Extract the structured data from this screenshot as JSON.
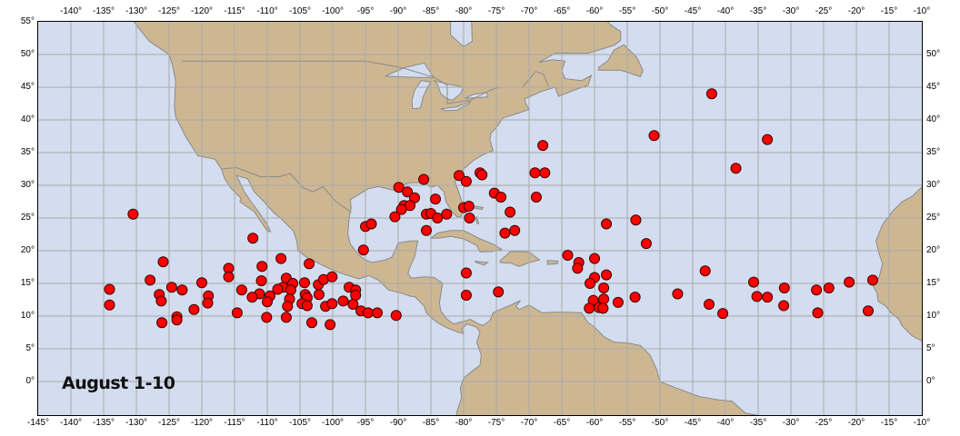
{
  "title": "August 1-10",
  "colors": {
    "ocean": "#d3ddef",
    "land": "#cdb792",
    "grid": "#a9a9a9",
    "border": "#8a8a8a",
    "point": "#ff0000"
  },
  "axes": {
    "lon_labels_top": [
      "-140°",
      "-135°",
      "-130°",
      "-125°",
      "-120°",
      "-115°",
      "-110°",
      "-105°",
      "-100°",
      "-95°",
      "-90°",
      "-85°",
      "-80°",
      "-75°",
      "-70°",
      "-65°",
      "-60°",
      "-55°",
      "-50°",
      "-45°",
      "-40°",
      "-35°",
      "-30°",
      "-25°",
      "-20°",
      "-15°",
      "-10°"
    ],
    "lon_labels_bottom": [
      "-145°",
      "-140°",
      "-135°",
      "-130°",
      "-125°",
      "-120°",
      "-115°",
      "-110°",
      "-105°",
      "-100°",
      "-95°",
      "-90°",
      "-85°",
      "-80°",
      "-75°",
      "-70°",
      "-65°",
      "-60°",
      "-55°",
      "-50°",
      "-45°",
      "-40°",
      "-35°",
      "-30°",
      "-25°",
      "-20°",
      "-15°",
      "-10°"
    ],
    "lat_labels_left": [
      "55°",
      "50°",
      "45°",
      "40°",
      "35°",
      "30°",
      "25°",
      "20°",
      "15°",
      "10°",
      "5°",
      "0°"
    ],
    "lat_labels_right": [
      "50°",
      "45°",
      "40°",
      "35°",
      "30°",
      "25°",
      "20°",
      "15°",
      "10°",
      "5°",
      "0°"
    ],
    "lon_range": [
      -145,
      -10
    ],
    "lat_range": [
      -5.1,
      55
    ],
    "grid": true
  },
  "points": [
    [
      -134.1,
      14.1
    ],
    [
      -134.1,
      11.7
    ],
    [
      -125.9,
      18.3
    ],
    [
      -127.9,
      15.5
    ],
    [
      -126.5,
      13.3
    ],
    [
      -126.2,
      12.3
    ],
    [
      -124.6,
      14.4
    ],
    [
      -123.0,
      14.0
    ],
    [
      -126.1,
      9.0
    ],
    [
      -123.8,
      9.9
    ],
    [
      -123.8,
      9.4
    ],
    [
      -121.2,
      11.0
    ],
    [
      -120.0,
      15.1
    ],
    [
      -119.0,
      13.1
    ],
    [
      -119.1,
      12.0
    ],
    [
      -115.9,
      17.3
    ],
    [
      -115.9,
      16.0
    ],
    [
      -114.6,
      10.5
    ],
    [
      -113.9,
      14.0
    ],
    [
      -110.8,
      17.6
    ],
    [
      -110.9,
      15.4
    ],
    [
      -111.2,
      13.4
    ],
    [
      -112.3,
      12.9
    ],
    [
      -109.6,
      13.1
    ],
    [
      -110.0,
      12.2
    ],
    [
      -110.1,
      9.8
    ],
    [
      -107.9,
      18.8
    ],
    [
      -107.1,
      15.8
    ],
    [
      -107.6,
      14.4
    ],
    [
      -108.4,
      14.1
    ],
    [
      -106.1,
      15.0
    ],
    [
      -106.4,
      14.0
    ],
    [
      -106.6,
      12.6
    ],
    [
      -106.9,
      11.5
    ],
    [
      -107.1,
      9.8
    ],
    [
      -103.6,
      18.0
    ],
    [
      -104.3,
      15.1
    ],
    [
      -104.2,
      13.3
    ],
    [
      -103.9,
      12.8
    ],
    [
      -104.7,
      11.9
    ],
    [
      -103.9,
      11.6
    ],
    [
      -103.2,
      9.0
    ],
    [
      -102.2,
      14.8
    ],
    [
      -101.4,
      15.6
    ],
    [
      -100.1,
      16.0
    ],
    [
      -102.1,
      13.3
    ],
    [
      -101.1,
      11.5
    ],
    [
      -100.1,
      11.9
    ],
    [
      -100.4,
      8.7
    ],
    [
      -98.4,
      12.3
    ],
    [
      -97.5,
      14.4
    ],
    [
      -96.5,
      14.0
    ],
    [
      -96.5,
      13.2
    ],
    [
      -96.9,
      11.8
    ],
    [
      -95.7,
      10.8
    ],
    [
      -94.6,
      10.5
    ],
    [
      -93.2,
      10.5
    ],
    [
      -90.3,
      10.1
    ],
    [
      -95.3,
      20.1
    ],
    [
      -130.5,
      25.6
    ],
    [
      -112.2,
      21.9
    ],
    [
      -95.0,
      23.7
    ],
    [
      -94.1,
      24.1
    ],
    [
      -86.1,
      30.9
    ],
    [
      -89.9,
      29.7
    ],
    [
      -88.6,
      29.0
    ],
    [
      -87.5,
      28.1
    ],
    [
      -89.1,
      26.9
    ],
    [
      -88.2,
      26.9
    ],
    [
      -89.5,
      26.3
    ],
    [
      -90.5,
      25.2
    ],
    [
      -84.3,
      27.9
    ],
    [
      -85.7,
      25.6
    ],
    [
      -85.0,
      25.7
    ],
    [
      -84.0,
      25.0
    ],
    [
      -82.6,
      25.6
    ],
    [
      -85.7,
      23.1
    ],
    [
      -80.7,
      31.5
    ],
    [
      -79.6,
      30.6
    ],
    [
      -80.0,
      26.6
    ],
    [
      -79.2,
      26.8
    ],
    [
      -79.1,
      25.0
    ],
    [
      -77.5,
      31.9
    ],
    [
      -77.2,
      31.6
    ],
    [
      -75.3,
      28.8
    ],
    [
      -74.3,
      28.2
    ],
    [
      -72.9,
      25.9
    ],
    [
      -73.7,
      22.7
    ],
    [
      -72.2,
      23.1
    ],
    [
      -67.9,
      36.1
    ],
    [
      -69.1,
      31.9
    ],
    [
      -67.6,
      31.9
    ],
    [
      -68.9,
      28.2
    ],
    [
      -58.2,
      24.1
    ],
    [
      -53.7,
      24.7
    ],
    [
      -52.1,
      21.1
    ],
    [
      -50.9,
      37.6
    ],
    [
      -79.6,
      16.6
    ],
    [
      -79.6,
      13.2
    ],
    [
      -74.7,
      13.7
    ],
    [
      -64.1,
      19.3
    ],
    [
      -62.4,
      18.2
    ],
    [
      -62.6,
      17.3
    ],
    [
      -60.0,
      18.8
    ],
    [
      -60.0,
      15.9
    ],
    [
      -58.2,
      16.3
    ],
    [
      -60.7,
      15.0
    ],
    [
      -58.6,
      14.3
    ],
    [
      -60.2,
      12.4
    ],
    [
      -58.6,
      12.6
    ],
    [
      -56.4,
      12.1
    ],
    [
      -53.8,
      12.9
    ],
    [
      -60.8,
      11.2
    ],
    [
      -59.3,
      11.3
    ],
    [
      -58.7,
      11.2
    ],
    [
      -42.1,
      44.0
    ],
    [
      -33.6,
      37.0
    ],
    [
      -38.4,
      32.6
    ],
    [
      -43.1,
      16.9
    ],
    [
      -47.3,
      13.4
    ],
    [
      -42.5,
      11.8
    ],
    [
      -40.4,
      10.4
    ],
    [
      -35.7,
      15.2
    ],
    [
      -35.2,
      13.0
    ],
    [
      -33.6,
      12.9
    ],
    [
      -31.0,
      14.3
    ],
    [
      -31.1,
      11.6
    ],
    [
      -26.1,
      14.0
    ],
    [
      -24.2,
      14.3
    ],
    [
      -25.9,
      10.5
    ],
    [
      -21.1,
      15.2
    ],
    [
      -17.5,
      15.5
    ],
    [
      -18.2,
      10.8
    ]
  ]
}
